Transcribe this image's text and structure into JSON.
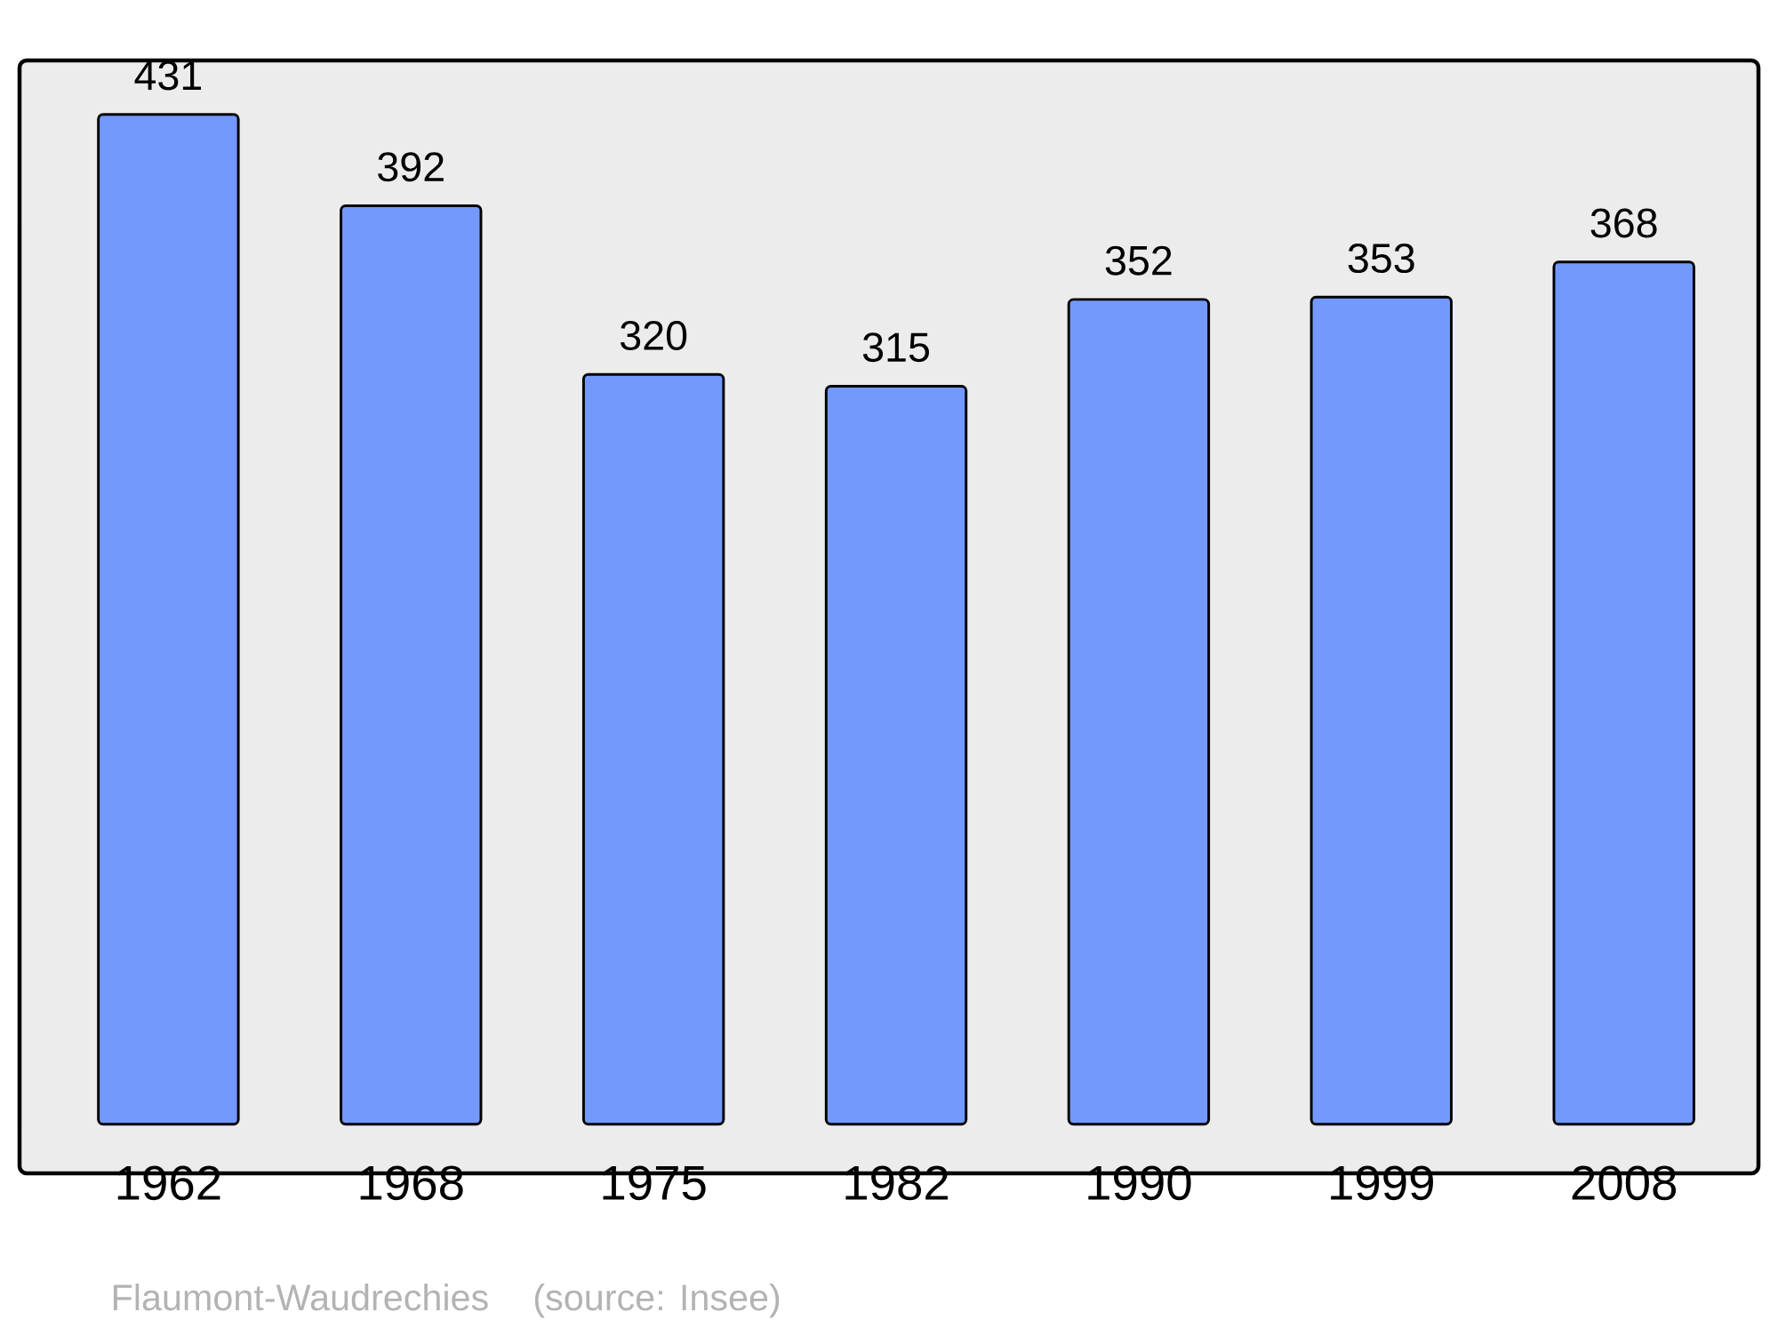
{
  "chart_data": {
    "type": "bar",
    "categories": [
      "1962",
      "1968",
      "1975",
      "1982",
      "1990",
      "1999",
      "2008"
    ],
    "values": [
      431,
      392,
      320,
      315,
      352,
      353,
      368
    ],
    "color": "#7399ff",
    "data_labels": true,
    "annotations": [
      "Flaumont-Waudrechies",
      "(source: Insee)"
    ]
  }
}
